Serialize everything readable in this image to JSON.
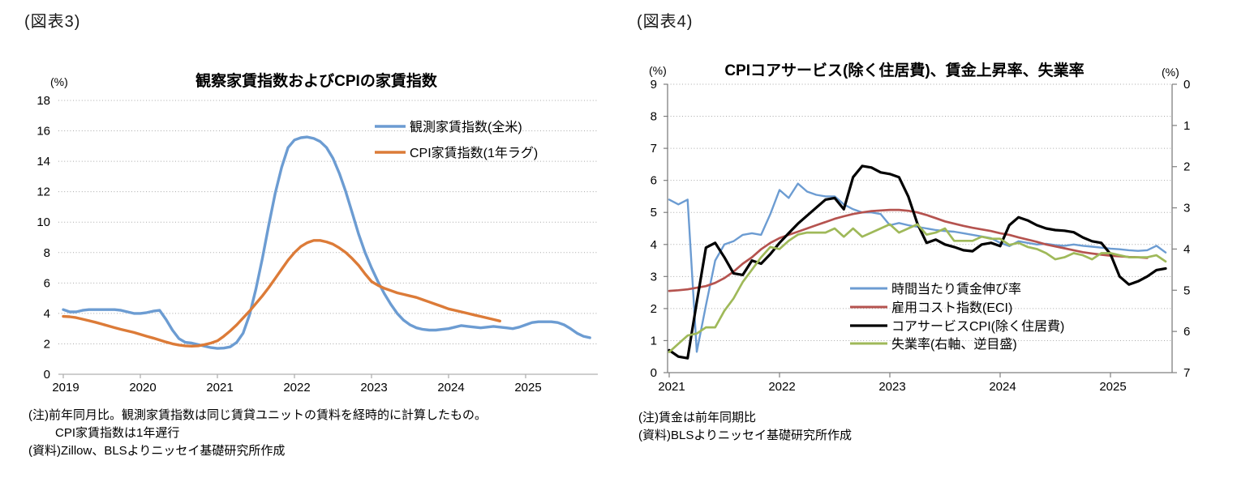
{
  "figure3": {
    "label": "(図表3)",
    "title": "観察家賃指数およびCPIの家賃指数",
    "y_unit": "(%)",
    "notes": [
      "(注)前年同月比。観測家賃指数は同じ賃貸ユニットの賃料を経時的に計算したもの。",
      "CPI家賃指数は1年遅行",
      "(資料)Zillow、BLSよりニッセイ基礎研究所作成"
    ],
    "chart_data": {
      "type": "line",
      "x_monthly_start": "2019-01",
      "x_ticks": [
        "2019",
        "2020",
        "2021",
        "2022",
        "2023",
        "2024",
        "2025"
      ],
      "ylim": [
        0,
        18
      ],
      "y_ticks": [
        "0",
        "2",
        "4",
        "6",
        "8",
        "10",
        "12",
        "14",
        "16",
        "18"
      ],
      "grid": "horizontal-dotted",
      "legend_position": "top-right-inside",
      "series": [
        {
          "name": "観測家賃指数(全米)",
          "color": "#6C9CD2",
          "axis": "left",
          "values": [
            4.25,
            4.1,
            4.1,
            4.2,
            4.25,
            4.25,
            4.25,
            4.25,
            4.25,
            4.2,
            4.1,
            4.0,
            4.0,
            4.05,
            4.15,
            4.2,
            3.6,
            2.9,
            2.35,
            2.1,
            2.05,
            1.95,
            1.85,
            1.75,
            1.7,
            1.72,
            1.8,
            2.1,
            2.7,
            3.9,
            5.6,
            7.6,
            9.8,
            11.9,
            13.6,
            14.9,
            15.4,
            15.55,
            15.6,
            15.5,
            15.3,
            14.9,
            14.2,
            13.2,
            12.0,
            10.6,
            9.2,
            8.0,
            7.0,
            6.1,
            5.3,
            4.6,
            4.0,
            3.55,
            3.25,
            3.05,
            2.95,
            2.9,
            2.9,
            2.95,
            3.0,
            3.1,
            3.2,
            3.15,
            3.1,
            3.05,
            3.1,
            3.15,
            3.1,
            3.05,
            3.0,
            3.1,
            3.25,
            3.4,
            3.45,
            3.45,
            3.45,
            3.4,
            3.25,
            3.0,
            2.7,
            2.5,
            2.4
          ]
        },
        {
          "name": "CPI家賃指数(1年ラグ)",
          "color": "#DC7B38",
          "axis": "left",
          "values": [
            3.8,
            3.78,
            3.72,
            3.62,
            3.52,
            3.42,
            3.3,
            3.18,
            3.06,
            2.95,
            2.85,
            2.75,
            2.62,
            2.5,
            2.38,
            2.25,
            2.12,
            2.0,
            1.92,
            1.87,
            1.85,
            1.87,
            1.95,
            2.05,
            2.2,
            2.5,
            2.85,
            3.25,
            3.7,
            4.15,
            4.65,
            5.15,
            5.7,
            6.3,
            6.9,
            7.5,
            8.0,
            8.4,
            8.65,
            8.8,
            8.8,
            8.7,
            8.55,
            8.3,
            8.0,
            7.6,
            7.15,
            6.6,
            6.1,
            5.85,
            5.65,
            5.5,
            5.35,
            5.25,
            5.15,
            5.05,
            4.9,
            4.75,
            4.6,
            4.45,
            4.3,
            4.2,
            4.1,
            4.0,
            3.9,
            3.8,
            3.7,
            3.6,
            3.5
          ]
        }
      ]
    }
  },
  "figure4": {
    "label": "(図表4)",
    "title": "CPIコアサービス(除く住居費)、賃金上昇率、失業率",
    "y_unit_left": "(%)",
    "y_unit_right": "(%)",
    "notes": [
      "(注)賃金は前年同期比",
      "(資料)BLSよりニッセイ基礎研究所作成"
    ],
    "chart_data": {
      "type": "line",
      "x_monthly_start": "2021-01",
      "x_ticks": [
        "2021",
        "2022",
        "2023",
        "2024",
        "2025"
      ],
      "ylim_left": [
        0,
        9
      ],
      "y_ticks_left": [
        "9",
        "8",
        "7",
        "6",
        "5",
        "4",
        "3",
        "2",
        "1",
        "0"
      ],
      "ylim_right": [
        0,
        7
      ],
      "right_axis_inverted": true,
      "y_ticks_right": [
        "0",
        "1",
        "2",
        "3",
        "4",
        "5",
        "6",
        "7"
      ],
      "grid": "horizontal-dotted",
      "legend_position": "right-inside",
      "series": [
        {
          "name": "時間当たり賃金伸び率",
          "color": "#6C9CD2",
          "axis": "left",
          "values": [
            5.4,
            5.25,
            5.4,
            0.65,
            2.1,
            3.5,
            4.0,
            4.1,
            4.3,
            4.35,
            4.3,
            4.95,
            5.7,
            5.45,
            5.9,
            5.65,
            5.55,
            5.5,
            5.5,
            5.25,
            5.1,
            5.0,
            5.0,
            4.95,
            4.6,
            4.67,
            4.6,
            4.55,
            4.5,
            4.45,
            4.42,
            4.4,
            4.35,
            4.3,
            4.25,
            4.2,
            4.05,
            3.95,
            4.1,
            4.05,
            4.0,
            4.02,
            3.98,
            3.96,
            4.0,
            3.96,
            3.93,
            3.9,
            3.87,
            3.85,
            3.82,
            3.8,
            3.82,
            3.96,
            3.75
          ]
        },
        {
          "name": "雇用コスト指数(ECI)",
          "color": "#B5534F",
          "axis": "left",
          "values": [
            2.55,
            2.57,
            2.6,
            2.65,
            2.7,
            2.8,
            2.95,
            3.15,
            3.4,
            3.6,
            3.85,
            4.05,
            4.2,
            4.3,
            4.4,
            4.5,
            4.6,
            4.7,
            4.8,
            4.88,
            4.95,
            5.0,
            5.04,
            5.06,
            5.08,
            5.08,
            5.05,
            5.0,
            4.92,
            4.82,
            4.72,
            4.65,
            4.58,
            4.52,
            4.47,
            4.42,
            4.35,
            4.3,
            4.22,
            4.15,
            4.08,
            4.0,
            3.94,
            3.88,
            3.82,
            3.76,
            3.72,
            3.68,
            3.65,
            3.63,
            3.61,
            3.6,
            3.58
          ]
        },
        {
          "name": "コアサービスCPI(除く住居費)",
          "color": "#000000",
          "axis": "left",
          "values": [
            0.7,
            0.5,
            0.45,
            2.2,
            3.9,
            4.05,
            3.6,
            3.1,
            3.05,
            3.5,
            3.4,
            3.7,
            4.05,
            4.35,
            4.65,
            4.9,
            5.15,
            5.4,
            5.45,
            5.1,
            6.1,
            6.45,
            6.4,
            6.25,
            6.2,
            6.1,
            5.5,
            4.65,
            4.05,
            4.15,
            4.0,
            3.92,
            3.82,
            3.79,
            4.0,
            4.05,
            3.95,
            4.6,
            4.85,
            4.75,
            4.6,
            4.5,
            4.45,
            4.43,
            4.38,
            4.22,
            4.1,
            4.05,
            3.7,
            3.0,
            2.75,
            2.85,
            3.0,
            3.2,
            3.25
          ]
        },
        {
          "name": "失業率(右軸、逆目盛)",
          "color": "#9FB959",
          "axis": "right",
          "values": [
            6.5,
            6.3,
            6.1,
            6.05,
            5.9,
            5.9,
            5.5,
            5.2,
            4.8,
            4.5,
            4.2,
            3.95,
            4.0,
            3.8,
            3.65,
            3.6,
            3.6,
            3.6,
            3.5,
            3.7,
            3.5,
            3.7,
            3.6,
            3.5,
            3.4,
            3.6,
            3.5,
            3.4,
            3.65,
            3.6,
            3.5,
            3.8,
            3.8,
            3.8,
            3.7,
            3.75,
            3.75,
            3.9,
            3.85,
            3.95,
            4.0,
            4.1,
            4.25,
            4.2,
            4.1,
            4.15,
            4.25,
            4.1,
            4.1,
            4.15,
            4.2,
            4.2,
            4.2,
            4.15,
            4.3
          ]
        }
      ]
    }
  }
}
